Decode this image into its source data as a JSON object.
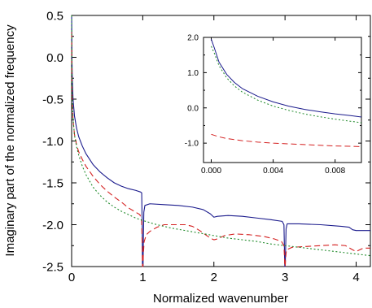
{
  "chart_data": [
    {
      "id": "main",
      "type": "line",
      "title": "",
      "xlabel": "Normalized wavenumber",
      "ylabel": "Imaginary part of the normalized frequency",
      "xlim": [
        0,
        4.2
      ],
      "ylim": [
        -2.5,
        0.5
      ],
      "xticks": [
        0,
        1,
        2,
        3,
        4
      ],
      "xtick_labels": [
        "0",
        "1",
        "2",
        "3",
        "4"
      ],
      "yticks": [
        0.5,
        0.0,
        -0.5,
        -1.0,
        -1.5,
        -2.0,
        -2.5
      ],
      "ytick_labels": [
        "0.5",
        "0.0",
        "-0.5",
        "-1.0",
        "-1.5",
        "-2.0",
        "-2.5"
      ],
      "grid": false,
      "series": [
        {
          "style": "solid",
          "color": "#1a1a8c",
          "points": [
            [
              0.0,
              0.5
            ],
            [
              0.005,
              -0.05
            ],
            [
              0.01,
              -0.28
            ],
            [
              0.02,
              -0.5
            ],
            [
              0.04,
              -0.7
            ],
            [
              0.07,
              -0.85
            ],
            [
              0.1,
              -0.95
            ],
            [
              0.15,
              -1.06
            ],
            [
              0.2,
              -1.15
            ],
            [
              0.3,
              -1.28
            ],
            [
              0.4,
              -1.37
            ],
            [
              0.5,
              -1.44
            ],
            [
              0.6,
              -1.5
            ],
            [
              0.7,
              -1.54
            ],
            [
              0.8,
              -1.57
            ],
            [
              0.9,
              -1.59
            ],
            [
              0.97,
              -1.61
            ],
            [
              0.985,
              -1.62
            ],
            [
              0.992,
              -2.0
            ],
            [
              0.996,
              -2.5
            ],
            [
              1.0,
              -2.5
            ],
            [
              1.004,
              -2.5
            ],
            [
              1.008,
              -2.2
            ],
            [
              1.015,
              -1.85
            ],
            [
              1.03,
              -1.77
            ],
            [
              1.1,
              -1.75
            ],
            [
              1.3,
              -1.76
            ],
            [
              1.5,
              -1.77
            ],
            [
              1.7,
              -1.79
            ],
            [
              1.85,
              -1.82
            ],
            [
              1.95,
              -1.87
            ],
            [
              2.0,
              -1.91
            ],
            [
              2.05,
              -1.9
            ],
            [
              2.2,
              -1.89
            ],
            [
              2.4,
              -1.9
            ],
            [
              2.6,
              -1.92
            ],
            [
              2.8,
              -1.94
            ],
            [
              2.96,
              -1.96
            ],
            [
              2.985,
              -2.0
            ],
            [
              2.992,
              -2.3
            ],
            [
              2.997,
              -2.5
            ],
            [
              3.0,
              -2.5
            ],
            [
              3.003,
              -2.5
            ],
            [
              3.008,
              -2.3
            ],
            [
              3.015,
              -2.05
            ],
            [
              3.03,
              -1.99
            ],
            [
              3.2,
              -1.99
            ],
            [
              3.5,
              -2.0
            ],
            [
              3.8,
              -2.02
            ],
            [
              3.9,
              -2.03
            ],
            [
              3.95,
              -2.06
            ],
            [
              4.0,
              -2.07
            ],
            [
              4.1,
              -2.07
            ],
            [
              4.2,
              -2.07
            ]
          ]
        },
        {
          "style": "dashed",
          "color": "#d42020",
          "points": [
            [
              0.0,
              0.3
            ],
            [
              0.005,
              -0.35
            ],
            [
              0.01,
              -0.55
            ],
            [
              0.02,
              -0.75
            ],
            [
              0.04,
              -0.92
            ],
            [
              0.07,
              -1.05
            ],
            [
              0.1,
              -1.13
            ],
            [
              0.15,
              -1.22
            ],
            [
              0.2,
              -1.3
            ],
            [
              0.3,
              -1.42
            ],
            [
              0.4,
              -1.52
            ],
            [
              0.5,
              -1.6
            ],
            [
              0.6,
              -1.67
            ],
            [
              0.7,
              -1.73
            ],
            [
              0.8,
              -1.8
            ],
            [
              0.9,
              -1.85
            ],
            [
              0.96,
              -1.88
            ],
            [
              0.985,
              -1.95
            ],
            [
              0.993,
              -2.3
            ],
            [
              0.997,
              -2.5
            ],
            [
              1.0,
              -2.5
            ],
            [
              1.003,
              -2.5
            ],
            [
              1.008,
              -2.35
            ],
            [
              1.02,
              -2.2
            ],
            [
              1.05,
              -2.12
            ],
            [
              1.1,
              -2.08
            ],
            [
              1.2,
              -2.03
            ],
            [
              1.3,
              -2.0
            ],
            [
              1.45,
              -2.0
            ],
            [
              1.6,
              -2.0
            ],
            [
              1.7,
              -2.02
            ],
            [
              1.8,
              -2.07
            ],
            [
              1.9,
              -2.13
            ],
            [
              1.95,
              -2.16
            ],
            [
              2.0,
              -2.18
            ],
            [
              2.05,
              -2.17
            ],
            [
              2.15,
              -2.13
            ],
            [
              2.3,
              -2.11
            ],
            [
              2.5,
              -2.12
            ],
            [
              2.7,
              -2.14
            ],
            [
              2.85,
              -2.17
            ],
            [
              2.95,
              -2.2
            ],
            [
              2.985,
              -2.25
            ],
            [
              2.993,
              -2.4
            ],
            [
              2.997,
              -2.5
            ],
            [
              3.0,
              -2.5
            ],
            [
              3.003,
              -2.5
            ],
            [
              3.008,
              -2.4
            ],
            [
              3.02,
              -2.3
            ],
            [
              3.1,
              -2.27
            ],
            [
              3.3,
              -2.26
            ],
            [
              3.5,
              -2.25
            ],
            [
              3.7,
              -2.24
            ],
            [
              3.85,
              -2.25
            ],
            [
              3.95,
              -2.3
            ],
            [
              4.0,
              -2.32
            ],
            [
              4.05,
              -2.3
            ],
            [
              4.1,
              -2.28
            ],
            [
              4.2,
              -2.28
            ]
          ]
        },
        {
          "style": "dotted",
          "color": "#1f8a2a",
          "points": [
            [
              0.0,
              0.5
            ],
            [
              0.005,
              -0.25
            ],
            [
              0.01,
              -0.5
            ],
            [
              0.02,
              -0.73
            ],
            [
              0.04,
              -0.93
            ],
            [
              0.07,
              -1.07
            ],
            [
              0.1,
              -1.17
            ],
            [
              0.15,
              -1.3
            ],
            [
              0.2,
              -1.4
            ],
            [
              0.3,
              -1.55
            ],
            [
              0.4,
              -1.65
            ],
            [
              0.5,
              -1.73
            ],
            [
              0.6,
              -1.79
            ],
            [
              0.7,
              -1.84
            ],
            [
              0.8,
              -1.88
            ],
            [
              0.9,
              -1.92
            ],
            [
              1.0,
              -1.95
            ],
            [
              1.2,
              -2.0
            ],
            [
              1.4,
              -2.04
            ],
            [
              1.6,
              -2.07
            ],
            [
              1.8,
              -2.1
            ],
            [
              2.0,
              -2.13
            ],
            [
              2.2,
              -2.16
            ],
            [
              2.4,
              -2.18
            ],
            [
              2.6,
              -2.2
            ],
            [
              2.8,
              -2.23
            ],
            [
              3.0,
              -2.25
            ],
            [
              3.2,
              -2.27
            ],
            [
              3.4,
              -2.29
            ],
            [
              3.6,
              -2.31
            ],
            [
              3.8,
              -2.33
            ],
            [
              4.0,
              -2.35
            ],
            [
              4.2,
              -2.37
            ]
          ]
        }
      ]
    },
    {
      "id": "inset",
      "type": "line",
      "title": "",
      "xlabel": "",
      "ylabel": "",
      "xlim": [
        -0.0005,
        0.0097
      ],
      "ylim": [
        -1.55,
        2.0
      ],
      "xticks": [
        0.0,
        0.004,
        0.008
      ],
      "xtick_labels": [
        "0.000",
        "0.004",
        "0.008"
      ],
      "yticks": [
        2.0,
        1.0,
        0.0,
        -1.0
      ],
      "ytick_labels": [
        "2.0",
        "1.0",
        "0.0",
        "-1.0"
      ],
      "grid": false,
      "series": [
        {
          "style": "solid",
          "color": "#1a1a8c",
          "points": [
            [
              0.0,
              1.95
            ],
            [
              0.0002,
              1.7
            ],
            [
              0.0005,
              1.3
            ],
            [
              0.001,
              0.95
            ],
            [
              0.0015,
              0.72
            ],
            [
              0.002,
              0.55
            ],
            [
              0.003,
              0.33
            ],
            [
              0.004,
              0.17
            ],
            [
              0.005,
              0.05
            ],
            [
              0.006,
              -0.04
            ],
            [
              0.007,
              -0.11
            ],
            [
              0.008,
              -0.17
            ],
            [
              0.009,
              -0.22
            ],
            [
              0.0097,
              -0.26
            ]
          ]
        },
        {
          "style": "dashed",
          "color": "#d42020",
          "points": [
            [
              0.0,
              -0.75
            ],
            [
              0.0005,
              -0.82
            ],
            [
              0.001,
              -0.87
            ],
            [
              0.0015,
              -0.9
            ],
            [
              0.002,
              -0.93
            ],
            [
              0.003,
              -0.97
            ],
            [
              0.004,
              -1.0
            ],
            [
              0.005,
              -1.02
            ],
            [
              0.006,
              -1.04
            ],
            [
              0.007,
              -1.06
            ],
            [
              0.008,
              -1.08
            ],
            [
              0.009,
              -1.09
            ],
            [
              0.0097,
              -1.1
            ]
          ]
        },
        {
          "style": "dotted",
          "color": "#1f8a2a",
          "points": [
            [
              0.0,
              1.75
            ],
            [
              0.0002,
              1.55
            ],
            [
              0.0005,
              1.2
            ],
            [
              0.001,
              0.85
            ],
            [
              0.0015,
              0.62
            ],
            [
              0.002,
              0.45
            ],
            [
              0.003,
              0.22
            ],
            [
              0.004,
              0.05
            ],
            [
              0.005,
              -0.07
            ],
            [
              0.006,
              -0.17
            ],
            [
              0.007,
              -0.25
            ],
            [
              0.008,
              -0.32
            ],
            [
              0.009,
              -0.38
            ],
            [
              0.0097,
              -0.42
            ]
          ]
        }
      ]
    }
  ]
}
